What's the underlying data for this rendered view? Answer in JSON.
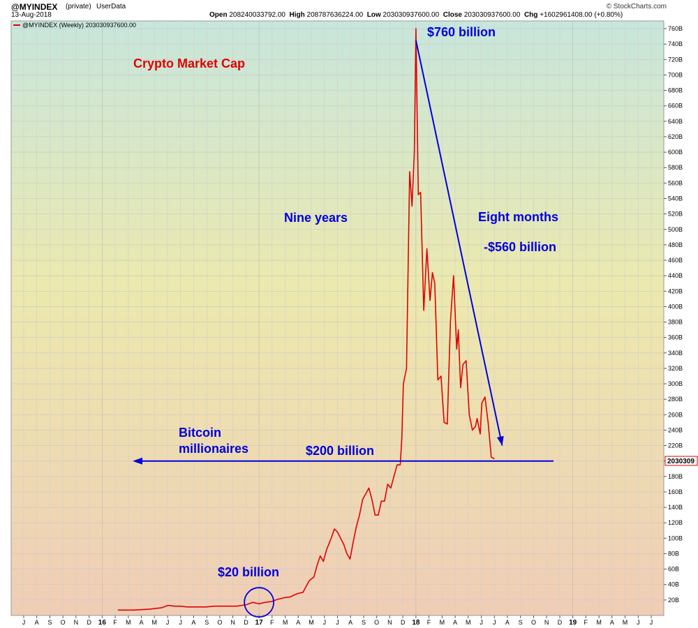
{
  "header": {
    "symbol": "@MYINDEX",
    "private": "(private)",
    "userdata": "UserData",
    "date": "13-Aug-2018",
    "open_label": "Open",
    "open_value": "208240033792.00",
    "high_label": "High",
    "high_value": "208787636224.00",
    "low_label": "Low",
    "low_value": "203030937600.00",
    "close_label": "Close",
    "close_value": "203030937600.00",
    "chg_label": "Chg",
    "chg_value": "+1602961408.00 (+0.80%)",
    "brand": "© StockCharts.com"
  },
  "legend": {
    "label": "@MYINDEX (Weekly) 203030937600.00"
  },
  "last_value_tag": "2030309",
  "colors": {
    "series": "#e00000",
    "annotation": "#0000dd",
    "title": "#e00000",
    "grid": "#c8c8c8"
  },
  "chart_data": {
    "type": "line",
    "title": "Crypto Market Cap",
    "xlabel": "",
    "ylabel": "",
    "ylim": [
      0,
      770
    ],
    "ylim_unit": "billions USD",
    "y_ticks": [
      20,
      40,
      60,
      80,
      100,
      120,
      140,
      160,
      180,
      200,
      220,
      240,
      260,
      280,
      300,
      320,
      340,
      360,
      380,
      400,
      420,
      440,
      460,
      480,
      500,
      520,
      540,
      560,
      580,
      600,
      620,
      640,
      660,
      680,
      700,
      720,
      740,
      760
    ],
    "y_tick_labels": [
      "20B",
      "40B",
      "60B",
      "80B",
      "100B",
      "120B",
      "140B",
      "160B",
      "180B",
      "200B",
      "220B",
      "240B",
      "260B",
      "280B",
      "300B",
      "320B",
      "340B",
      "360B",
      "380B",
      "400B",
      "420B",
      "440B",
      "460B",
      "480B",
      "500B",
      "520B",
      "540B",
      "560B",
      "580B",
      "600B",
      "620B",
      "640B",
      "660B",
      "680B",
      "700B",
      "720B",
      "740B",
      "760B"
    ],
    "x_ticks": [
      {
        "label": "J",
        "t": 2015.5
      },
      {
        "label": "A",
        "t": 2015.583
      },
      {
        "label": "S",
        "t": 2015.667
      },
      {
        "label": "O",
        "t": 2015.75
      },
      {
        "label": "N",
        "t": 2015.833
      },
      {
        "label": "D",
        "t": 2015.917
      },
      {
        "label": "16",
        "t": 2016.0,
        "bold": true
      },
      {
        "label": "F",
        "t": 2016.083
      },
      {
        "label": "M",
        "t": 2016.167
      },
      {
        "label": "A",
        "t": 2016.25
      },
      {
        "label": "M",
        "t": 2016.333
      },
      {
        "label": "J",
        "t": 2016.417
      },
      {
        "label": "J",
        "t": 2016.5
      },
      {
        "label": "A",
        "t": 2016.583
      },
      {
        "label": "S",
        "t": 2016.667
      },
      {
        "label": "O",
        "t": 2016.75
      },
      {
        "label": "N",
        "t": 2016.833
      },
      {
        "label": "D",
        "t": 2016.917
      },
      {
        "label": "17",
        "t": 2017.0,
        "bold": true
      },
      {
        "label": "F",
        "t": 2017.083
      },
      {
        "label": "M",
        "t": 2017.167
      },
      {
        "label": "A",
        "t": 2017.25
      },
      {
        "label": "M",
        "t": 2017.333
      },
      {
        "label": "J",
        "t": 2017.417
      },
      {
        "label": "J",
        "t": 2017.5
      },
      {
        "label": "A",
        "t": 2017.583
      },
      {
        "label": "S",
        "t": 2017.667
      },
      {
        "label": "O",
        "t": 2017.75
      },
      {
        "label": "N",
        "t": 2017.833
      },
      {
        "label": "D",
        "t": 2017.917
      },
      {
        "label": "18",
        "t": 2018.0,
        "bold": true
      },
      {
        "label": "F",
        "t": 2018.083
      },
      {
        "label": "M",
        "t": 2018.167
      },
      {
        "label": "A",
        "t": 2018.25
      },
      {
        "label": "M",
        "t": 2018.333
      },
      {
        "label": "J",
        "t": 2018.417
      },
      {
        "label": "J",
        "t": 2018.5
      },
      {
        "label": "A",
        "t": 2018.583
      },
      {
        "label": "S",
        "t": 2018.667
      },
      {
        "label": "O",
        "t": 2018.75
      },
      {
        "label": "N",
        "t": 2018.833
      },
      {
        "label": "D",
        "t": 2018.917
      },
      {
        "label": "19",
        "t": 2019.0,
        "bold": true
      },
      {
        "label": "F",
        "t": 2019.083
      },
      {
        "label": "M",
        "t": 2019.167
      },
      {
        "label": "A",
        "t": 2019.25
      },
      {
        "label": "M",
        "t": 2019.333
      },
      {
        "label": "J",
        "t": 2019.417
      },
      {
        "label": "J",
        "t": 2019.5
      }
    ],
    "series": [
      {
        "color": "#e00000",
        "points": [
          [
            2016.1,
            7
          ],
          [
            2016.2,
            7
          ],
          [
            2016.3,
            8
          ],
          [
            2016.38,
            10
          ],
          [
            2016.42,
            13
          ],
          [
            2016.46,
            12
          ],
          [
            2016.5,
            12
          ],
          [
            2016.54,
            11
          ],
          [
            2016.6,
            11
          ],
          [
            2016.66,
            11
          ],
          [
            2016.72,
            12
          ],
          [
            2016.78,
            12
          ],
          [
            2016.86,
            12
          ],
          [
            2016.92,
            14
          ],
          [
            2016.96,
            17
          ],
          [
            2017.0,
            15
          ],
          [
            2017.04,
            17
          ],
          [
            2017.08,
            18
          ],
          [
            2017.12,
            21
          ],
          [
            2017.16,
            23
          ],
          [
            2017.2,
            24
          ],
          [
            2017.24,
            28
          ],
          [
            2017.28,
            30
          ],
          [
            2017.32,
            45
          ],
          [
            2017.35,
            50
          ],
          [
            2017.37,
            65
          ],
          [
            2017.39,
            77
          ],
          [
            2017.41,
            70
          ],
          [
            2017.43,
            85
          ],
          [
            2017.46,
            100
          ],
          [
            2017.48,
            112
          ],
          [
            2017.5,
            108
          ],
          [
            2017.52,
            100
          ],
          [
            2017.54,
            92
          ],
          [
            2017.56,
            80
          ],
          [
            2017.58,
            73
          ],
          [
            2017.6,
            95
          ],
          [
            2017.62,
            115
          ],
          [
            2017.64,
            130
          ],
          [
            2017.66,
            150
          ],
          [
            2017.7,
            165
          ],
          [
            2017.72,
            150
          ],
          [
            2017.74,
            130
          ],
          [
            2017.76,
            130
          ],
          [
            2017.78,
            148
          ],
          [
            2017.8,
            148
          ],
          [
            2017.82,
            170
          ],
          [
            2017.84,
            165
          ],
          [
            2017.86,
            180
          ],
          [
            2017.88,
            195
          ],
          [
            2017.9,
            195
          ],
          [
            2017.91,
            230
          ],
          [
            2017.92,
            300
          ],
          [
            2017.94,
            320
          ],
          [
            2017.96,
            575
          ],
          [
            2017.975,
            530
          ],
          [
            2017.99,
            600
          ],
          [
            2018.0,
            760
          ],
          [
            2018.015,
            545
          ],
          [
            2018.03,
            548
          ],
          [
            2018.05,
            395
          ],
          [
            2018.07,
            475
          ],
          [
            2018.09,
            408
          ],
          [
            2018.105,
            444
          ],
          [
            2018.12,
            430
          ],
          [
            2018.14,
            305
          ],
          [
            2018.16,
            310
          ],
          [
            2018.18,
            250
          ],
          [
            2018.2,
            248
          ],
          [
            2018.22,
            380
          ],
          [
            2018.24,
            440
          ],
          [
            2018.26,
            345
          ],
          [
            2018.27,
            370
          ],
          [
            2018.285,
            295
          ],
          [
            2018.3,
            325
          ],
          [
            2018.32,
            330
          ],
          [
            2018.34,
            260
          ],
          [
            2018.36,
            240
          ],
          [
            2018.38,
            245
          ],
          [
            2018.39,
            255
          ],
          [
            2018.41,
            235
          ],
          [
            2018.42,
            275
          ],
          [
            2018.44,
            283
          ],
          [
            2018.46,
            250
          ],
          [
            2018.48,
            205
          ],
          [
            2018.5,
            203
          ]
        ]
      }
    ],
    "annotations": [
      {
        "text": "Crypto Market Cap",
        "role": "title"
      },
      {
        "text": "$760 billion"
      },
      {
        "text": "Nine years"
      },
      {
        "text": "Eight months"
      },
      {
        "text": "-$560 billion"
      },
      {
        "text": "Bitcoin"
      },
      {
        "text": "millionaires"
      },
      {
        "text": "$200 billion"
      },
      {
        "text": "$20 billion"
      }
    ],
    "reference_line_value": 200,
    "trend_line": {
      "from": [
        2018.0,
        745
      ],
      "to": [
        2018.55,
        220
      ]
    },
    "highlight_circle": {
      "t": 2017.0,
      "value": 17
    }
  }
}
